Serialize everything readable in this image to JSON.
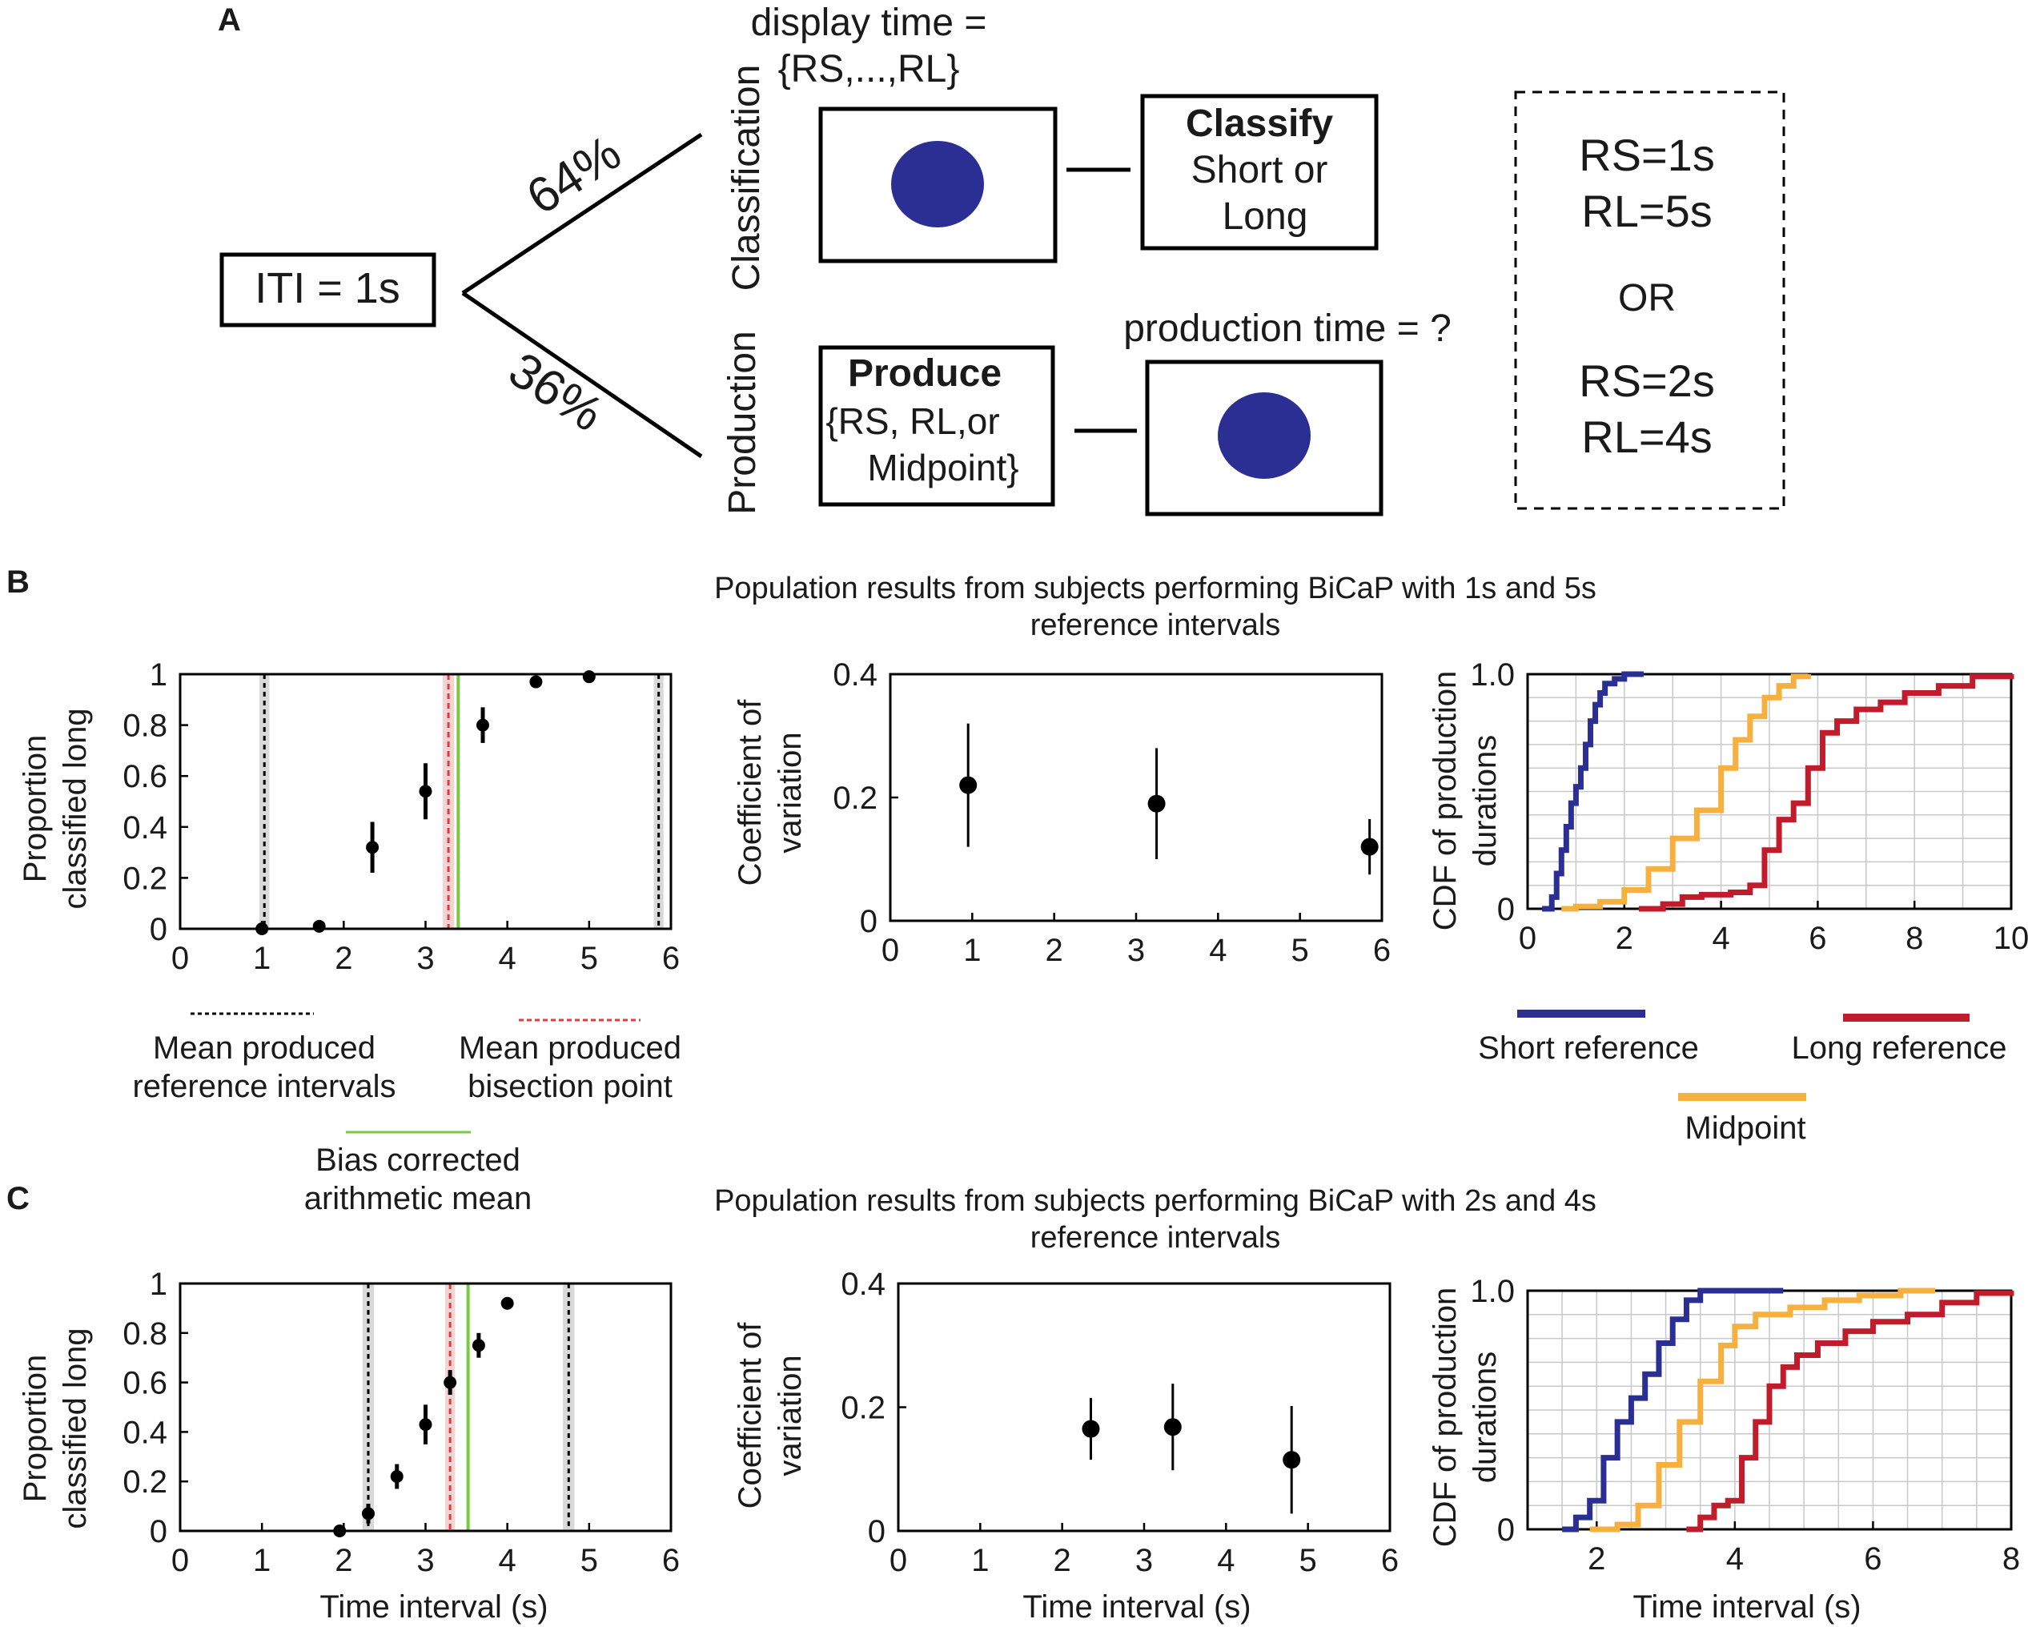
{
  "figure_title": "BiCaP task schematic and population results",
  "colors": {
    "dot": "#2b2f94",
    "short": "#2b2f94",
    "mid": "#f5b040",
    "long": "#c01c2c",
    "green": "#7ac943",
    "red_dash": "#e83a3a",
    "shade": "#d9d9d9",
    "black_dash": "#000000"
  },
  "panel_a": {
    "label": "A",
    "iti": "ITI = 1s",
    "pct_classification": "64%",
    "pct_production": "36%",
    "branch_classification": "Classification",
    "branch_production": "Production",
    "display_time_line1": "display time =",
    "display_time_line2": "{RS,...,RL}",
    "classify_title": "Classify",
    "classify_line1": "Short or",
    "classify_line2": "Long",
    "produce_title": "Produce",
    "produce_line1": "{RS, RL,or",
    "produce_line2": "Midpoint}",
    "production_time": "production time = ?",
    "rs1": "RS=1s",
    "rl1": "RL=5s",
    "or": "OR",
    "rs2": "RS=2s",
    "rl2": "RL=4s"
  },
  "panel_b": {
    "label": "B",
    "title_line1": "Population results from subjects performing BiCaP with 1s and 5s",
    "title_line2": "reference intervals"
  },
  "panel_c": {
    "label": "C",
    "title_line1": "Population results from subjects performing BiCaP with 2s and 4s",
    "title_line2": "reference intervals"
  },
  "legend_b": {
    "mean_ref_line1": "Mean produced",
    "mean_ref_line2": "reference intervals",
    "mean_bis_line1": "Mean produced",
    "mean_bis_line2": "bisection point",
    "bias_line1": "Bias corrected",
    "bias_line2": "arithmetic mean",
    "short_ref": "Short reference",
    "long_ref": "Long reference",
    "midpoint": "Midpoint"
  },
  "axes": {
    "prop_y_line1": "Proportion",
    "prop_y_line2": "classified long",
    "cv_y_line1": "Coefficient of",
    "cv_y_line2": "variation",
    "cdf_y_line1": "CDF of production",
    "cdf_y_line2": "durations",
    "x_label": "Time interval (s)"
  },
  "chart_data": [
    {
      "id": "B1",
      "type": "scatter",
      "xlim": [
        0,
        6
      ],
      "ylim": [
        0,
        1
      ],
      "xticks": [
        0,
        1,
        2,
        3,
        4,
        5,
        6
      ],
      "yticks": [
        0,
        0.2,
        0.4,
        0.6,
        0.8,
        1
      ],
      "ytick_labels": [
        "0",
        "0.2",
        "0.4",
        "0.6",
        "0.8",
        "1"
      ],
      "points": [
        {
          "x": 1.0,
          "y": 0.0,
          "err": 0.005
        },
        {
          "x": 1.7,
          "y": 0.01,
          "err": 0.01
        },
        {
          "x": 2.35,
          "y": 0.32,
          "err": 0.1
        },
        {
          "x": 3.0,
          "y": 0.54,
          "err": 0.11
        },
        {
          "x": 3.7,
          "y": 0.8,
          "err": 0.07
        },
        {
          "x": 4.35,
          "y": 0.97,
          "err": 0.02
        },
        {
          "x": 5.0,
          "y": 0.99,
          "err": 0.015
        }
      ],
      "ref_lines": [
        1.03,
        5.85
      ],
      "ref_shade_halfwidth": 0.06,
      "bisection": 3.28,
      "bisection_shade_halfwidth": 0.07,
      "bias_mean": 3.4
    },
    {
      "id": "B2",
      "type": "scatter",
      "xlim": [
        0,
        6
      ],
      "ylim": [
        0,
        0.4
      ],
      "xticks": [
        0,
        1,
        2,
        3,
        4,
        5,
        6
      ],
      "yticks": [
        0,
        0.2,
        0.4
      ],
      "ytick_labels": [
        "0",
        "0.2",
        "0.4"
      ],
      "points": [
        {
          "x": 0.95,
          "y": 0.22,
          "err": 0.1
        },
        {
          "x": 3.25,
          "y": 0.19,
          "err": 0.09
        },
        {
          "x": 5.85,
          "y": 0.12,
          "err": 0.045
        }
      ]
    },
    {
      "id": "B3",
      "type": "line",
      "xlim": [
        0,
        10
      ],
      "ylim": [
        0,
        1
      ],
      "xticks": [
        0,
        2,
        4,
        6,
        8,
        10
      ],
      "yticks": [
        0,
        1
      ],
      "ytick_labels": [
        "0",
        "1.0"
      ],
      "grid_x": [
        1,
        2,
        3,
        4,
        5,
        6,
        7,
        8,
        9
      ],
      "grid_y": [
        0.1,
        0.2,
        0.3,
        0.4,
        0.5,
        0.6,
        0.7,
        0.8,
        0.9
      ],
      "series": [
        {
          "name": "Short reference",
          "color": "#2b2f94",
          "x": [
            0.3,
            0.5,
            0.6,
            0.7,
            0.8,
            0.9,
            1.0,
            1.1,
            1.2,
            1.3,
            1.4,
            1.5,
            1.6,
            1.8,
            2.0,
            2.4
          ],
          "y": [
            0,
            0.05,
            0.15,
            0.25,
            0.35,
            0.45,
            0.52,
            0.6,
            0.7,
            0.8,
            0.87,
            0.92,
            0.96,
            0.98,
            1.0,
            1.0
          ]
        },
        {
          "name": "Midpoint",
          "color": "#f5b040",
          "x": [
            0.7,
            1.0,
            1.5,
            2.0,
            2.5,
            3.0,
            3.5,
            4.0,
            4.3,
            4.6,
            4.9,
            5.2,
            5.5,
            5.8
          ],
          "y": [
            0,
            0.01,
            0.03,
            0.08,
            0.17,
            0.3,
            0.42,
            0.6,
            0.72,
            0.82,
            0.9,
            0.95,
            0.99,
            1.0
          ]
        },
        {
          "name": "Long reference",
          "color": "#c01c2c",
          "x": [
            2.3,
            2.8,
            3.2,
            3.6,
            4.2,
            4.6,
            4.9,
            5.2,
            5.5,
            5.8,
            6.1,
            6.4,
            6.8,
            7.3,
            7.8,
            8.5,
            9.2,
            10.0
          ],
          "y": [
            0,
            0.02,
            0.05,
            0.06,
            0.07,
            0.1,
            0.25,
            0.38,
            0.45,
            0.6,
            0.75,
            0.8,
            0.85,
            0.88,
            0.92,
            0.95,
            0.99,
            1.0
          ]
        }
      ]
    },
    {
      "id": "C1",
      "type": "scatter",
      "xlim": [
        0,
        6
      ],
      "ylim": [
        0,
        1
      ],
      "xticks": [
        0,
        1,
        2,
        3,
        4,
        5,
        6
      ],
      "yticks": [
        0,
        0.2,
        0.4,
        0.6,
        0.8,
        1
      ],
      "ytick_labels": [
        "0",
        "0.2",
        "0.4",
        "0.6",
        "0.8",
        "1"
      ],
      "points": [
        {
          "x": 1.95,
          "y": 0.0,
          "err": 0.01
        },
        {
          "x": 2.3,
          "y": 0.07,
          "err": 0.04
        },
        {
          "x": 2.65,
          "y": 0.22,
          "err": 0.05
        },
        {
          "x": 3.0,
          "y": 0.43,
          "err": 0.08
        },
        {
          "x": 3.3,
          "y": 0.6,
          "err": 0.05
        },
        {
          "x": 3.65,
          "y": 0.75,
          "err": 0.05
        },
        {
          "x": 4.0,
          "y": 0.92,
          "err": 0.025
        }
      ],
      "ref_lines": [
        2.3,
        4.75
      ],
      "ref_shade_halfwidth": 0.07,
      "bisection": 3.3,
      "bisection_shade_halfwidth": 0.06,
      "bias_mean": 3.52
    },
    {
      "id": "C2",
      "type": "scatter",
      "xlim": [
        0,
        6
      ],
      "ylim": [
        0,
        0.4
      ],
      "xticks": [
        0,
        1,
        2,
        3,
        4,
        5,
        6
      ],
      "yticks": [
        0,
        0.2,
        0.4
      ],
      "ytick_labels": [
        "0",
        "0.2",
        "0.4"
      ],
      "points": [
        {
          "x": 2.35,
          "y": 0.165,
          "err": 0.05
        },
        {
          "x": 3.35,
          "y": 0.168,
          "err": 0.07
        },
        {
          "x": 4.8,
          "y": 0.115,
          "err": 0.087
        }
      ]
    },
    {
      "id": "C3",
      "type": "line",
      "xlim": [
        1,
        8
      ],
      "ylim": [
        0,
        1
      ],
      "xticks": [
        2,
        4,
        6,
        8
      ],
      "yticks": [
        0,
        1
      ],
      "ytick_labels": [
        "0",
        "1.0"
      ],
      "grid_x": [
        1.5,
        2,
        2.5,
        3,
        3.5,
        4,
        4.5,
        5,
        5.5,
        6,
        6.5,
        7,
        7.5
      ],
      "grid_y": [
        0.1,
        0.2,
        0.3,
        0.4,
        0.5,
        0.6,
        0.7,
        0.8,
        0.9
      ],
      "series": [
        {
          "name": "Short reference",
          "color": "#2b2f94",
          "x": [
            1.5,
            1.7,
            1.9,
            2.1,
            2.3,
            2.5,
            2.7,
            2.9,
            3.1,
            3.3,
            3.5,
            4.0,
            4.7
          ],
          "y": [
            0,
            0.05,
            0.12,
            0.3,
            0.45,
            0.55,
            0.65,
            0.78,
            0.88,
            0.96,
            1.0,
            1.0,
            1.0
          ]
        },
        {
          "name": "Midpoint",
          "color": "#f5b040",
          "x": [
            1.9,
            2.3,
            2.6,
            2.9,
            3.2,
            3.5,
            3.8,
            4.0,
            4.3,
            4.8,
            5.3,
            5.8,
            6.4,
            6.9
          ],
          "y": [
            0,
            0.02,
            0.1,
            0.27,
            0.45,
            0.62,
            0.77,
            0.85,
            0.9,
            0.93,
            0.96,
            0.98,
            1.0,
            1.0
          ]
        },
        {
          "name": "Long reference",
          "color": "#c01c2c",
          "x": [
            3.3,
            3.5,
            3.7,
            3.9,
            4.1,
            4.3,
            4.5,
            4.7,
            4.9,
            5.2,
            5.6,
            6.0,
            6.5,
            7.0,
            7.5,
            8.0
          ],
          "y": [
            0,
            0.05,
            0.1,
            0.12,
            0.3,
            0.45,
            0.6,
            0.68,
            0.73,
            0.78,
            0.83,
            0.87,
            0.9,
            0.95,
            0.99,
            1.0
          ]
        }
      ]
    }
  ]
}
